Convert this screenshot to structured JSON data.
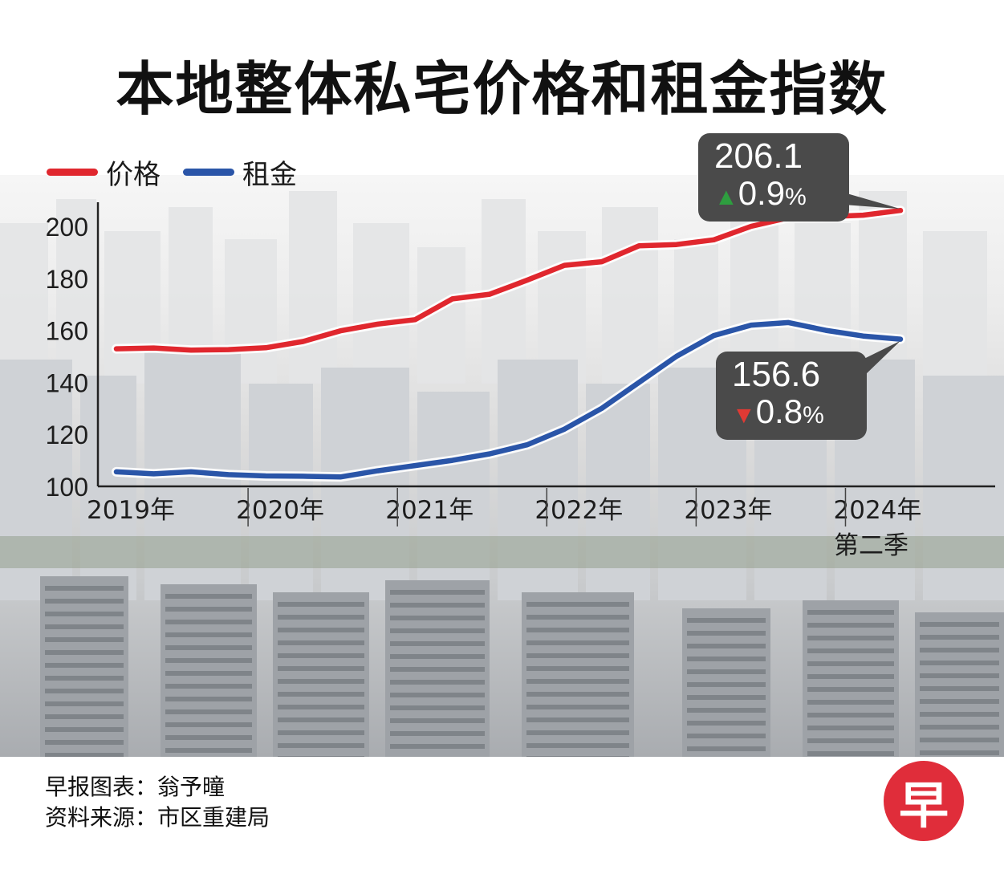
{
  "title": "本地整体私宅价格和租金指数",
  "legend": [
    {
      "label": "价格",
      "color": "#e0272e"
    },
    {
      "label": "租金",
      "color": "#2a55a8"
    }
  ],
  "callouts": {
    "price": {
      "value": "206.1",
      "arrow": "up",
      "arrow_glyph": "▲",
      "change": "0.9",
      "unit": "%"
    },
    "rent": {
      "value": "156.6",
      "arrow": "down",
      "arrow_glyph": "▼",
      "change": "0.8",
      "unit": "%"
    }
  },
  "chart_data": {
    "type": "line",
    "x": [
      "2019Q1",
      "2019Q2",
      "2019Q3",
      "2019Q4",
      "2020Q1",
      "2020Q2",
      "2020Q3",
      "2020Q4",
      "2021Q1",
      "2021Q2",
      "2021Q3",
      "2021Q4",
      "2022Q1",
      "2022Q2",
      "2022Q3",
      "2022Q4",
      "2023Q1",
      "2023Q2",
      "2023Q3",
      "2023Q4",
      "2024Q1",
      "2024Q2"
    ],
    "x_tick_labels": [
      {
        "at": "2019Q1",
        "label": "2019年"
      },
      {
        "at": "2020Q1",
        "label": "2020年"
      },
      {
        "at": "2021Q1",
        "label": "2021年"
      },
      {
        "at": "2022Q1",
        "label": "2022年"
      },
      {
        "at": "2023Q1",
        "label": "2023年"
      },
      {
        "at": "2024Q1",
        "label": "2024年",
        "label2": "第二季"
      }
    ],
    "series": [
      {
        "name": "价格",
        "color": "#e0272e",
        "values": [
          152.9,
          153.2,
          152.4,
          152.6,
          153.3,
          155.7,
          159.8,
          162.4,
          164.1,
          172.1,
          173.9,
          179.3,
          185.0,
          186.4,
          192.5,
          193.0,
          194.8,
          200.0,
          203.3,
          203.7,
          204.3,
          206.1
        ]
      },
      {
        "name": "租金",
        "color": "#2a55a8",
        "values": [
          105.6,
          104.8,
          105.6,
          104.5,
          104.0,
          103.9,
          103.6,
          106.0,
          108.0,
          110.0,
          112.5,
          116.0,
          122.0,
          130.0,
          140.0,
          150.0,
          158.0,
          162.0,
          163.0,
          160.0,
          157.8,
          156.6
        ]
      }
    ],
    "ylim": [
      100,
      210
    ],
    "yticks": [
      100,
      120,
      140,
      160,
      180,
      200
    ],
    "grid": false
  },
  "footer": {
    "line1": "早报图表：翁予曈",
    "line2": "资料来源：市区重建局"
  },
  "logo_text": "早"
}
